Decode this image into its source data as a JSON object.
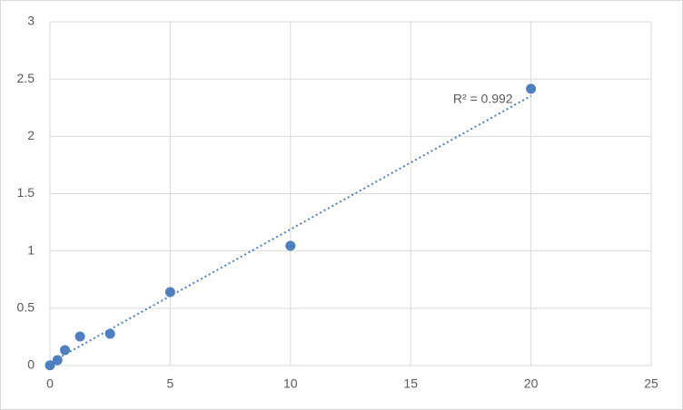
{
  "chart_data": {
    "type": "scatter",
    "x": [
      0,
      0.3125,
      0.625,
      1.25,
      2.5,
      5,
      10,
      20
    ],
    "values": [
      0.002,
      0.047,
      0.135,
      0.253,
      0.277,
      0.641,
      1.045,
      2.415
    ],
    "color": "#4e7fc0",
    "trendline": "linear",
    "trendline_label": "R² = 0.992",
    "xlim": [
      0,
      25
    ],
    "xticks": [
      0,
      5,
      10,
      15,
      20,
      25
    ],
    "ylim": [
      0,
      3
    ],
    "yticks": [
      0,
      0.5,
      1,
      1.5,
      2,
      2.5,
      3
    ],
    "grid": true
  }
}
